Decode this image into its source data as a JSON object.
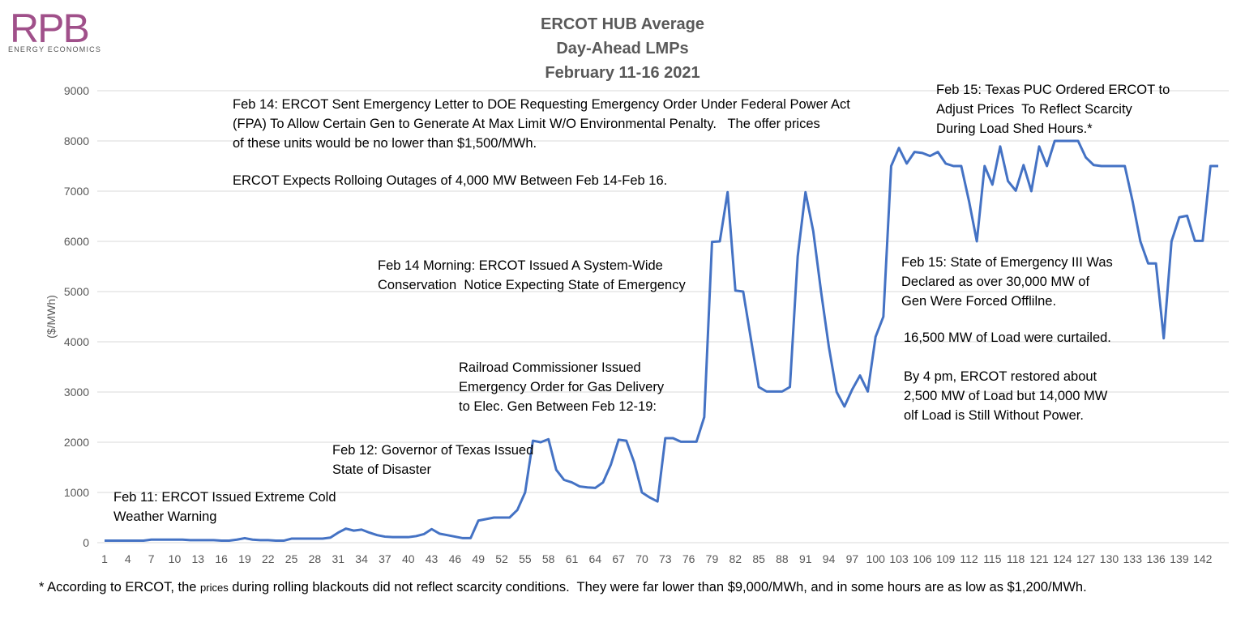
{
  "logo": {
    "text": "RPB",
    "subtitle": "ENERGY ECONOMICS"
  },
  "chart_data": {
    "type": "line",
    "title": [
      "ERCOT HUB Average",
      "Day-Ahead LMPs",
      "February 11-16 2021"
    ],
    "ylabel": "($/MWh)",
    "categories": [
      1,
      null,
      null,
      4,
      null,
      null,
      7,
      null,
      null,
      10,
      null,
      null,
      13,
      null,
      null,
      16,
      null,
      null,
      19,
      null,
      null,
      22,
      null,
      null,
      25,
      null,
      null,
      28,
      null,
      null,
      31,
      null,
      null,
      34,
      null,
      null,
      37,
      null,
      null,
      40,
      null,
      null,
      43,
      null,
      null,
      46,
      null,
      null,
      49,
      null,
      null,
      52,
      null,
      null,
      55,
      null,
      null,
      58,
      null,
      null,
      61,
      null,
      null,
      64,
      null,
      null,
      67,
      null,
      null,
      70,
      null,
      null,
      73,
      null,
      null,
      76,
      null,
      null,
      79,
      null,
      null,
      82,
      null,
      null,
      85,
      null,
      null,
      88,
      null,
      null,
      91,
      null,
      null,
      94,
      null,
      null,
      97,
      null,
      null,
      100,
      null,
      null,
      103,
      null,
      null,
      106,
      null,
      null,
      109,
      null,
      null,
      112,
      null,
      null,
      115,
      null,
      null,
      118,
      null,
      null,
      121,
      null,
      null,
      124,
      null,
      null,
      127,
      null,
      null,
      130,
      null,
      null,
      133,
      null,
      null,
      136,
      null,
      null,
      139,
      null,
      null,
      142,
      null,
      null
    ],
    "series": [
      {
        "name": "ERCOT HUB Average",
        "color": "#4472c4",
        "values": [
          40,
          40,
          40,
          40,
          40,
          40,
          60,
          60,
          60,
          60,
          60,
          50,
          50,
          50,
          50,
          40,
          40,
          60,
          90,
          60,
          50,
          50,
          40,
          40,
          80,
          80,
          80,
          80,
          80,
          100,
          200,
          280,
          240,
          260,
          200,
          150,
          120,
          110,
          110,
          110,
          130,
          170,
          270,
          180,
          150,
          120,
          90,
          90,
          440,
          470,
          500,
          500,
          500,
          650,
          1000,
          2030,
          2000,
          2060,
          1450,
          1250,
          1200,
          1120,
          1100,
          1090,
          1200,
          1550,
          2050,
          2030,
          1600,
          1000,
          900,
          820,
          2080,
          2080,
          2010,
          2010,
          2010,
          2500,
          5990,
          6000,
          6980,
          5020,
          5000,
          4050,
          3100,
          3010,
          3010,
          3010,
          3100,
          5700,
          6980,
          6200,
          5000,
          3900,
          3000,
          2710,
          3050,
          3330,
          3010,
          4100,
          4500,
          7500,
          7860,
          7550,
          7780,
          7760,
          7700,
          7780,
          7550,
          7500,
          7500,
          6800,
          6000,
          7500,
          7130,
          7890,
          7200,
          7010,
          7520,
          7000,
          7890,
          7500,
          8000,
          8000,
          8000,
          8000,
          7670,
          7520,
          7500,
          7500,
          7500,
          7500,
          6800,
          6000,
          5560,
          5560,
          4070,
          6000,
          6480,
          6510,
          6010,
          6010,
          7500,
          7500
        ]
      }
    ],
    "ylim": [
      0,
      9000
    ],
    "yticks": [
      0,
      1000,
      2000,
      3000,
      4000,
      5000,
      6000,
      7000,
      8000,
      9000
    ],
    "grid": true,
    "annotations": [
      {
        "lines": [
          "Feb 14: ERCOT Sent Emergency Letter to DOE Requesting Emergency Order Under Federal Power Act",
          "(FPA) To Allow Certain Gen to Generate At Max Limit W/O Environmental Penalty.   The offer prices",
          "of these units would be no lower than $1,500/MWh."
        ]
      },
      {
        "lines": [
          "ERCOT Expects Rolloing Outages of 4,000 MW Between Feb 14-Feb 16."
        ]
      },
      {
        "lines": [
          "Feb 15: Texas PUC Ordered ERCOT to",
          "Adjust Prices  To Reflect Scarcity",
          "During Load Shed Hours.*"
        ]
      },
      {
        "lines": [
          "Feb 14 Morning: ERCOT Issued A System-Wide",
          "Conservation  Notice Expecting State of Emergency"
        ]
      },
      {
        "lines": [
          "Feb 15: State of Emergency III Was",
          "Declared as over 30,000 MW of",
          "Gen Were Forced Offlilne."
        ]
      },
      {
        "lines": [
          "16,500 MW of Load were curtailed."
        ]
      },
      {
        "lines": [
          "By 4 pm, ERCOT restored about",
          "2,500 MW of Load but 14,000 MW",
          "olf Load is Still Without Power."
        ]
      },
      {
        "lines": [
          "Railroad Commissioner Issued",
          "Emergency Order for Gas Delivery",
          "to Elec. Gen Between Feb 12-19:"
        ]
      },
      {
        "lines": [
          "Feb 12: Governor of Texas Issued",
          "State of Disaster"
        ]
      },
      {
        "lines": [
          "Feb 11: ERCOT Issued Extreme Cold",
          "Weather Warning"
        ]
      }
    ],
    "footnote": [
      "* According to ERCOT, the ",
      "prices",
      " during rolling blackouts did not reflect scarcity conditions.  They were far lower than $9,000/MWh, and in some hours are as low as $1,200/MWh."
    ]
  }
}
